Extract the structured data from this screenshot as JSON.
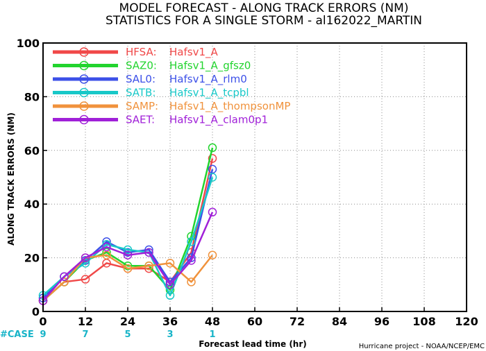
{
  "title_line1": "MODEL FORECAST - ALONG TRACK ERRORS (NM)",
  "title_line2": "STATISTICS FOR A SINGLE STORM - al162022_MARTIN",
  "credit": "Hurricane project - NOAA/NCEP/EMC",
  "case_label": "#CASE",
  "chart_data": {
    "type": "line",
    "title": "MODEL FORECAST - ALONG TRACK ERRORS (NM)",
    "subtitle": "STATISTICS FOR A SINGLE STORM - al162022_MARTIN",
    "xlabel": "Forecast lead time (hr)",
    "ylabel": "ALONG TRACK ERRORS (NM)",
    "xlim": [
      0,
      120
    ],
    "ylim": [
      0,
      100
    ],
    "xticks": [
      0,
      12,
      24,
      36,
      48,
      60,
      72,
      84,
      96,
      108,
      120
    ],
    "yticks": [
      0,
      20,
      40,
      60,
      80,
      100
    ],
    "grid": true,
    "legend_position": "top-left",
    "x": [
      0,
      6,
      12,
      18,
      24,
      30,
      36,
      42,
      48
    ],
    "cases": [
      {
        "x": 0,
        "label": "9"
      },
      {
        "x": 12,
        "label": "7"
      },
      {
        "x": 24,
        "label": "5"
      },
      {
        "x": 36,
        "label": "3"
      },
      {
        "x": 48,
        "label": "1"
      }
    ],
    "series": [
      {
        "name": "HFSA:",
        "desc": "Hafsv1_A",
        "color": "#f04848",
        "values": [
          4,
          11,
          12,
          18,
          16,
          16,
          11,
          22,
          57
        ]
      },
      {
        "name": "SAZ0:",
        "desc": "Hafsv1_A_gfsz0",
        "color": "#22d42e",
        "values": [
          4,
          11,
          19,
          22,
          17,
          17,
          8,
          28,
          61
        ]
      },
      {
        "name": "SAL0:",
        "desc": "Hafsv1_A_rlm0",
        "color": "#3c50e8",
        "values": [
          5,
          13,
          19,
          26,
          22,
          23,
          11,
          20,
          53
        ]
      },
      {
        "name": "SATB:",
        "desc": "Hafsv1_A_tcpbl",
        "color": "#18c8c8",
        "values": [
          6,
          13,
          18,
          25,
          23,
          22,
          6,
          26,
          50
        ]
      },
      {
        "name": "SAMP:",
        "desc": "Hafsv1_A_thompsonMP",
        "color": "#f0923c",
        "values": [
          4,
          11,
          20,
          21,
          16,
          17,
          18,
          11,
          21
        ]
      },
      {
        "name": "SAET:",
        "desc": "Hafsv1_A_clam0p1",
        "color": "#a020d8",
        "values": [
          4,
          13,
          20,
          24,
          21,
          22,
          10,
          19,
          37
        ]
      }
    ]
  }
}
